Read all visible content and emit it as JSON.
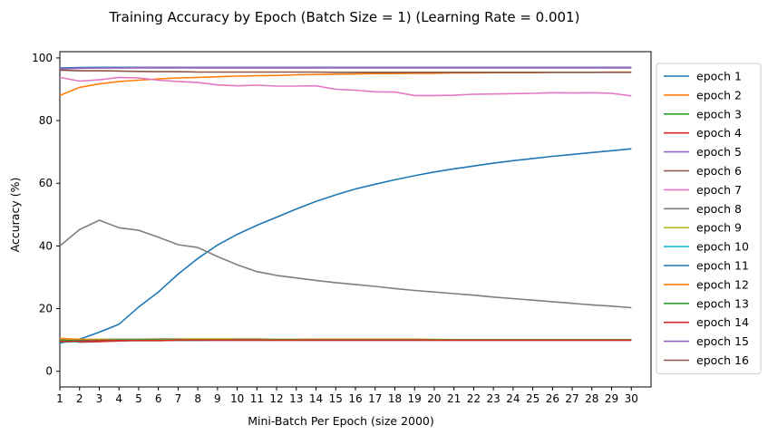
{
  "chart_data": {
    "type": "line",
    "title": "Training Accuracy by Epoch (Batch Size = 1) (Learning Rate = 0.001)",
    "xlabel": "Mini-Batch Per Epoch (size 2000)",
    "ylabel": "Accuracy (%)",
    "xlim": [
      1,
      31
    ],
    "ylim": [
      -5,
      102
    ],
    "x": [
      1,
      2,
      3,
      4,
      5,
      6,
      7,
      8,
      9,
      10,
      11,
      12,
      13,
      14,
      15,
      16,
      17,
      18,
      19,
      20,
      21,
      22,
      23,
      24,
      25,
      26,
      27,
      28,
      29,
      30
    ],
    "xticks": [
      1,
      2,
      3,
      4,
      5,
      6,
      7,
      8,
      9,
      10,
      11,
      12,
      13,
      14,
      15,
      16,
      17,
      18,
      19,
      20,
      21,
      22,
      23,
      24,
      25,
      26,
      27,
      28,
      29,
      30
    ],
    "yticks": [
      0,
      20,
      40,
      60,
      80,
      100
    ],
    "grid": false,
    "legend_position": "outside-right",
    "series": [
      {
        "name": "epoch 1",
        "color": "#1f77b4",
        "values": [
          9.0,
          10.2,
          12.5,
          15.0,
          20.5,
          25.3,
          31.0,
          36.0,
          40.3,
          43.7,
          46.6,
          49.2,
          51.8,
          54.2,
          56.3,
          58.2,
          59.7,
          61.1,
          62.4,
          63.6,
          64.6,
          65.5,
          66.4,
          67.2,
          67.9,
          68.6,
          69.2,
          69.8,
          70.4,
          71.0
        ]
      },
      {
        "name": "epoch 2",
        "color": "#ff7f0e",
        "values": [
          88.0,
          90.6,
          91.7,
          92.5,
          92.9,
          93.3,
          93.6,
          93.8,
          94.0,
          94.2,
          94.3,
          94.4,
          94.6,
          94.7,
          94.8,
          94.9,
          95.0,
          95.0,
          95.1,
          95.1,
          95.2,
          95.2,
          95.3,
          95.3,
          95.3,
          95.4,
          95.4,
          95.4,
          95.5,
          95.5
        ]
      },
      {
        "name": "epoch 3",
        "color": "#2ca02c",
        "values": [
          9.6,
          9.7,
          9.8,
          9.8,
          9.9,
          9.9,
          9.9,
          9.9,
          10.0,
          10.0,
          10.0,
          10.0,
          10.0,
          10.0,
          10.0,
          10.0,
          10.0,
          10.0,
          10.0,
          10.0,
          10.0,
          10.0,
          10.0,
          10.0,
          10.0,
          10.0,
          10.0,
          10.0,
          10.0,
          10.0
        ]
      },
      {
        "name": "epoch 4",
        "color": "#d62728",
        "values": [
          10.1,
          9.3,
          9.5,
          9.7,
          9.9,
          10.0,
          10.1,
          10.1,
          10.1,
          10.1,
          10.1,
          10.0,
          10.0,
          10.0,
          10.0,
          10.0,
          10.0,
          10.0,
          10.0,
          10.0,
          10.0,
          10.0,
          10.0,
          10.0,
          10.0,
          10.0,
          10.0,
          10.0,
          10.0,
          10.0
        ]
      },
      {
        "name": "epoch 5",
        "color": "#9467bd",
        "values": [
          96.4,
          96.7,
          96.8,
          96.8,
          96.8,
          96.8,
          96.8,
          96.8,
          96.8,
          96.8,
          96.8,
          96.8,
          96.8,
          96.8,
          96.8,
          96.8,
          96.8,
          96.8,
          96.8,
          96.8,
          96.8,
          96.8,
          96.8,
          96.8,
          96.8,
          96.8,
          96.8,
          96.8,
          96.8,
          96.8
        ]
      },
      {
        "name": "epoch 6",
        "color": "#8c564b",
        "values": [
          10.3,
          10.0,
          10.2,
          10.2,
          10.2,
          10.3,
          10.3,
          10.3,
          10.3,
          10.3,
          10.3,
          10.2,
          10.2,
          10.2,
          10.2,
          10.2,
          10.2,
          10.2,
          10.2,
          10.1,
          10.1,
          10.1,
          10.1,
          10.1,
          10.1,
          10.1,
          10.1,
          10.1,
          10.1,
          10.1
        ]
      },
      {
        "name": "epoch 7",
        "color": "#e377c2",
        "values": [
          93.8,
          92.6,
          93.0,
          93.8,
          93.6,
          92.9,
          92.5,
          92.2,
          91.4,
          91.1,
          91.3,
          91.0,
          91.0,
          91.1,
          90.0,
          89.7,
          89.2,
          89.1,
          88.0,
          88.0,
          88.1,
          88.4,
          88.5,
          88.6,
          88.7,
          88.9,
          88.8,
          88.9,
          88.7,
          87.9
        ]
      },
      {
        "name": "epoch 8",
        "color": "#7f7f7f",
        "values": [
          40.0,
          45.2,
          48.2,
          45.8,
          45.0,
          42.8,
          40.4,
          39.5,
          36.6,
          34.0,
          31.8,
          30.6,
          29.8,
          29.0,
          28.3,
          27.7,
          27.1,
          26.4,
          25.8,
          25.3,
          24.8,
          24.3,
          23.7,
          23.2,
          22.7,
          22.2,
          21.7,
          21.2,
          20.8,
          20.3
        ]
      },
      {
        "name": "epoch 9",
        "color": "#bcbd22",
        "values": [
          10.4,
          10.1,
          10.2,
          10.1,
          10.1,
          10.2,
          10.2,
          10.3,
          10.3,
          10.2,
          10.2,
          10.2,
          10.2,
          10.2,
          10.2,
          10.2,
          10.2,
          10.2,
          10.2,
          10.2,
          10.1,
          10.1,
          10.1,
          10.1,
          10.1,
          10.1,
          10.1,
          10.1,
          10.1,
          10.0
        ]
      },
      {
        "name": "epoch 10",
        "color": "#17becf",
        "values": [
          9.3,
          9.5,
          9.7,
          9.8,
          9.8,
          9.8,
          9.9,
          9.9,
          9.9,
          9.9,
          9.9,
          9.9,
          9.9,
          9.9,
          9.9,
          9.9,
          9.9,
          9.9,
          9.9,
          9.9,
          9.9,
          9.9,
          9.9,
          9.9,
          9.9,
          9.9,
          9.9,
          9.9,
          9.9,
          9.9
        ]
      },
      {
        "name": "epoch 11",
        "color": "#1f77b4",
        "values": [
          96.8,
          96.9,
          97.0,
          97.0,
          97.0,
          97.0,
          97.0,
          97.0,
          97.0,
          97.0,
          97.0,
          97.0,
          97.0,
          97.0,
          97.0,
          97.0,
          97.0,
          97.0,
          97.0,
          97.0,
          97.0,
          97.0,
          97.0,
          97.0,
          97.0,
          97.0,
          97.0,
          97.0,
          97.0,
          97.0
        ]
      },
      {
        "name": "epoch 12",
        "color": "#ff7f0e",
        "values": [
          10.5,
          10.2,
          10.1,
          10.0,
          10.0,
          10.0,
          10.1,
          10.1,
          10.1,
          10.1,
          10.1,
          10.1,
          10.1,
          10.2,
          10.2,
          10.2,
          10.2,
          10.2,
          10.2,
          10.1,
          10.1,
          10.1,
          10.1,
          10.1,
          10.1,
          10.1,
          10.1,
          10.1,
          10.1,
          10.1
        ]
      },
      {
        "name": "epoch 13",
        "color": "#2ca02c",
        "values": [
          9.8,
          9.9,
          9.9,
          10.0,
          10.0,
          10.0,
          10.0,
          10.0,
          10.0,
          10.0,
          10.0,
          10.0,
          10.0,
          10.0,
          10.0,
          10.0,
          10.0,
          10.0,
          10.0,
          10.0,
          10.0,
          10.0,
          10.0,
          10.0,
          10.0,
          10.0,
          10.0,
          10.0,
          10.0,
          10.0
        ]
      },
      {
        "name": "epoch 14",
        "color": "#d62728",
        "values": [
          9.5,
          9.6,
          9.7,
          9.8,
          9.8,
          9.8,
          9.9,
          9.9,
          9.9,
          9.9,
          9.9,
          9.9,
          9.9,
          9.9,
          9.9,
          9.9,
          9.9,
          9.9,
          9.9,
          9.9,
          9.9,
          9.9,
          9.9,
          9.9,
          9.9,
          9.9,
          9.9,
          9.9,
          9.9,
          9.9
        ]
      },
      {
        "name": "epoch 15",
        "color": "#9467bd",
        "values": [
          96.5,
          96.7,
          96.8,
          96.8,
          96.9,
          96.9,
          96.9,
          96.9,
          96.9,
          96.9,
          96.9,
          96.9,
          96.9,
          96.9,
          96.9,
          96.9,
          96.9,
          96.9,
          96.9,
          96.9,
          96.9,
          96.9,
          96.9,
          96.9,
          96.9,
          96.9,
          96.9,
          96.9,
          96.9,
          96.9
        ]
      },
      {
        "name": "epoch 16",
        "color": "#8c564b",
        "values": [
          96.1,
          95.9,
          95.9,
          95.8,
          95.7,
          95.6,
          95.6,
          95.5,
          95.5,
          95.5,
          95.5,
          95.5,
          95.5,
          95.5,
          95.4,
          95.4,
          95.4,
          95.4,
          95.4,
          95.4,
          95.4,
          95.4,
          95.4,
          95.4,
          95.4,
          95.4,
          95.4,
          95.4,
          95.4,
          95.4
        ]
      }
    ]
  }
}
